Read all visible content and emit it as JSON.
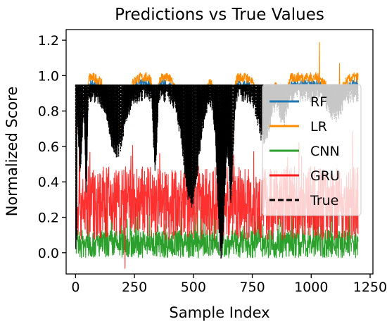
{
  "chart_data": {
    "type": "line",
    "title": "Predictions vs True Values",
    "xlabel": "Sample Index",
    "ylabel": "Normalized Score",
    "xlim": [
      -40,
      1262
    ],
    "ylim": [
      -0.12,
      1.26
    ],
    "x_ticks": [
      0,
      250,
      500,
      750,
      1000,
      1250
    ],
    "x_tick_labels": [
      "0",
      "250",
      "500",
      "750",
      "1000",
      "1250"
    ],
    "y_ticks": [
      0.0,
      0.2,
      0.4,
      0.6,
      0.8,
      1.0,
      1.2
    ],
    "y_tick_labels": [
      "0.0",
      "0.2",
      "0.4",
      "0.6",
      "0.8",
      "1.0",
      "1.2"
    ],
    "n_samples": 1200,
    "legend_position": "center-right",
    "grid": false,
    "series": [
      {
        "name": "RF",
        "color": "#1f77b4",
        "style": "solid",
        "description_points": {
          "x": [
            0,
            80,
            180,
            300,
            420,
            500,
            600,
            700,
            850,
            1000,
            1200
          ],
          "y": [
            0.93,
            0.95,
            0.93,
            0.95,
            0.94,
            0.9,
            0.93,
            0.95,
            0.95,
            0.96,
            0.96
          ]
        }
      },
      {
        "name": "LR",
        "color": "#ff8c00",
        "style": "solid",
        "description_points": {
          "x": [
            0,
            80,
            200,
            300,
            420,
            520,
            640,
            760,
            900,
            1030,
            1200
          ],
          "y": [
            0.96,
            1.01,
            1.03,
            1.0,
            1.02,
            1.01,
            1.0,
            1.0,
            0.99,
            1.19,
            0.99
          ]
        }
      },
      {
        "name": "CNN",
        "color": "#2ca02c",
        "style": "solid",
        "description_points": {
          "x": [
            0,
            150,
            300,
            450,
            600,
            750,
            900,
            1050,
            1200
          ],
          "y": [
            0.05,
            0.1,
            0.02,
            0.12,
            0.0,
            0.1,
            0.05,
            0.08,
            0.05
          ]
        }
      },
      {
        "name": "GRU",
        "color": "#ff1a1a",
        "style": "solid",
        "description_points": {
          "x": [
            0,
            100,
            200,
            300,
            400,
            500,
            600,
            700,
            800,
            900,
            1000,
            1100,
            1200
          ],
          "y": [
            0.27,
            0.3,
            0.28,
            0.25,
            0.3,
            0.27,
            0.26,
            0.3,
            0.28,
            0.27,
            0.28,
            0.3,
            0.28
          ]
        }
      },
      {
        "name": "True",
        "color": "#000000",
        "style": "dashed",
        "description_points": {
          "x": [
            0,
            20,
            45,
            180,
            320,
            345,
            500,
            620,
            680,
            750,
            1000,
            1200
          ],
          "y": [
            0.1,
            0.93,
            0.93,
            0.6,
            0.95,
            0.4,
            0.3,
            0.0,
            0.35,
            0.9,
            0.93,
            0.95
          ]
        }
      }
    ]
  }
}
